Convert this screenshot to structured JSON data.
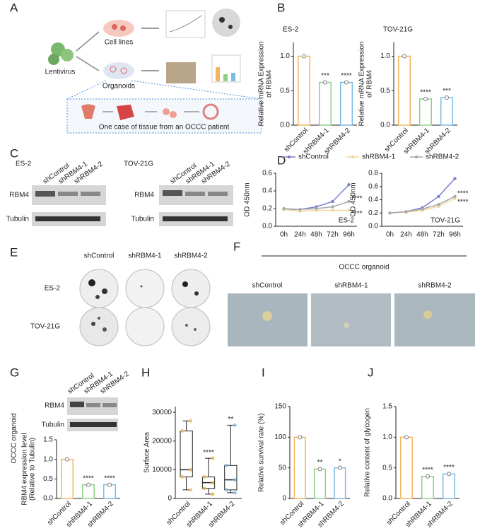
{
  "figure": {
    "panel_labels": [
      "A",
      "B",
      "C",
      "D",
      "E",
      "F",
      "G",
      "H",
      "I",
      "J"
    ],
    "a": {
      "lentivirus": "Lentivirus",
      "cell_lines": "Cell lines",
      "organoids": "Organoids",
      "caption": "One case of tissue from an OCCC patient"
    },
    "c": {
      "cell_lines": [
        "ES-2",
        "TOV-21G"
      ],
      "lanes": [
        "shControl",
        "shRBM4-1",
        "shRBM4-2"
      ],
      "proteins": [
        "RBM4",
        "Tubulin"
      ]
    },
    "e": {
      "columns": [
        "shControl",
        "shRBM4-1",
        "shRBM4-2"
      ],
      "rows": [
        "ES-2",
        "TOV-21G"
      ]
    },
    "f": {
      "title": "OCCC organoid",
      "columns": [
        "shControl",
        "shRBM4-1",
        "shRBM4-2"
      ]
    },
    "g": {
      "side_label": "OCCC organoid",
      "lanes": [
        "shControl",
        "shRBM4-1",
        "shRBM4-2"
      ],
      "proteins": [
        "RBM4",
        "Tubulin"
      ]
    }
  },
  "chart_data": [
    {
      "type": "bar",
      "title": "ES-2",
      "ylabel": [
        "Relative mRNA Expression",
        "of RBM4"
      ],
      "categories": [
        "shControl",
        "shRBM4-1",
        "shRBM4-2"
      ],
      "values": [
        1.0,
        0.62,
        0.62
      ],
      "colors": [
        "#f2b560",
        "#8fcf8a",
        "#7bbbe6"
      ],
      "ylim": [
        0,
        1.2
      ],
      "yticks": [
        {
          "value": 0,
          "label": "0.0"
        },
        {
          "value": 0.5,
          "label": "0.5"
        },
        {
          "value": 1,
          "label": "1.0"
        }
      ],
      "annotations": [
        {
          "category": "shRBM4-1",
          "text": "***"
        },
        {
          "category": "shRBM4-2",
          "text": "****"
        }
      ]
    },
    {
      "type": "bar",
      "title": "TOV-21G",
      "ylabel": [
        "Relative mRNA Expression",
        "of RBM4"
      ],
      "categories": [
        "shControl",
        "shRBM4-1",
        "shRBM4-2"
      ],
      "values": [
        1.0,
        0.38,
        0.4
      ],
      "colors": [
        "#f2b560",
        "#8fcf8a",
        "#7bbbe6"
      ],
      "ylim": [
        0,
        1.2
      ],
      "yticks": [
        {
          "value": 0,
          "label": "0.0"
        },
        {
          "value": 0.5,
          "label": "0.5"
        },
        {
          "value": 1,
          "label": "1.0"
        }
      ],
      "annotations": [
        {
          "category": "shRBM4-1",
          "text": "****"
        },
        {
          "category": "shRBM4-2",
          "text": "***"
        }
      ]
    },
    {
      "type": "line",
      "label": "ES-2",
      "ylabel": [
        "OD 450nm"
      ],
      "categories": [
        "0h",
        "24h",
        "48h",
        "72h",
        "96h"
      ],
      "series": [
        {
          "name": "shControl",
          "color": "#7b7fd0",
          "values": [
            0.19,
            0.19,
            0.22,
            0.28,
            0.47
          ]
        },
        {
          "name": "shRBM4-1",
          "color": "#f0d89a",
          "values": [
            0.19,
            0.17,
            0.18,
            0.18,
            0.18
          ]
        },
        {
          "name": "shRBM4-2",
          "color": "#a9a9a9",
          "values": [
            0.2,
            0.19,
            0.2,
            0.22,
            0.28
          ]
        }
      ],
      "ylim": [
        0,
        0.6
      ],
      "yticks": [
        {
          "value": 0,
          "label": "0.0"
        },
        0.2,
        0.4,
        0.6
      ],
      "annotations": [
        {
          "series": "shRBM4-2",
          "text": "****"
        },
        {
          "series": "shRBM4-1",
          "text": "****"
        }
      ]
    },
    {
      "type": "line",
      "label": "TOV-21G",
      "ylabel": [
        "OD 450nm"
      ],
      "categories": [
        "0h",
        "24h",
        "48h",
        "72h",
        "96h"
      ],
      "series": [
        {
          "color": "#7b7fd0",
          "values": [
            0.2,
            0.22,
            0.28,
            0.45,
            0.72
          ]
        },
        {
          "color": "#f0d89a",
          "values": [
            0.2,
            0.21,
            0.24,
            0.3,
            0.42
          ]
        },
        {
          "color": "#a9a9a9",
          "values": [
            0.2,
            0.22,
            0.26,
            0.33,
            0.45
          ]
        }
      ],
      "ylim": [
        0,
        0.8
      ],
      "yticks": [
        {
          "value": 0,
          "label": "0.0"
        },
        0.2,
        0.4,
        0.6,
        0.8
      ],
      "annotations": [
        {
          "series": 2,
          "text": "****"
        },
        {
          "series": 1,
          "text": "****"
        }
      ]
    },
    {
      "type": "bar",
      "ylabel": [
        "RBM4  expression level",
        "(Relative to Tubulin)"
      ],
      "categories": [
        "shControl",
        "shRBM4-1",
        "shRBM4-2"
      ],
      "values": [
        1.0,
        0.35,
        0.35
      ],
      "colors": [
        "#f2b560",
        "#8fcf8a",
        "#7bbbe6"
      ],
      "ylim": [
        0,
        1.5
      ],
      "yticks": [
        {
          "value": 0,
          "label": "0.0"
        },
        {
          "value": 0.5,
          "label": "0.5"
        },
        {
          "value": 1,
          "label": "1.0"
        },
        {
          "value": 1.5,
          "label": "1.5"
        }
      ],
      "annotations": [
        {
          "category": "shRBM4-1",
          "text": "****"
        },
        {
          "category": "shRBM4-2",
          "text": "****"
        }
      ]
    },
    {
      "type": "box",
      "ylabel": [
        "Surface Area"
      ],
      "categories": [
        "shControl",
        "shRBM4-1",
        "shRBM4-2"
      ],
      "colors": [
        "#f2b560",
        "#e8b04a",
        "#7bbbe6"
      ],
      "boxes": [
        {
          "min": 3000,
          "q1": 7500,
          "median": 10000,
          "q3": 23500,
          "max": 27000
        },
        {
          "min": 1500,
          "q1": 3500,
          "median": 5500,
          "q3": 7500,
          "max": 14000
        },
        {
          "min": 2000,
          "q1": 3000,
          "median": 6500,
          "q3": 11500,
          "max": 25500
        }
      ],
      "ylim": [
        0,
        32000
      ],
      "yticks": [
        0,
        10000,
        20000,
        30000
      ],
      "annotations": [
        {
          "category": "shRBM4-1",
          "text": "****"
        },
        {
          "category": "shRBM4-2",
          "text": "**"
        }
      ]
    },
    {
      "type": "bar",
      "ylabel": [
        "Relative survival rate (%)"
      ],
      "categories": [
        "shControl",
        "shRBM4-1",
        "shRBM4-2"
      ],
      "values": [
        100,
        48,
        50
      ],
      "colors": [
        "#f2b560",
        "#8fcf8a",
        "#7bbbe6"
      ],
      "ylim": [
        0,
        150
      ],
      "yticks": [
        0,
        50,
        100,
        150
      ],
      "annotations": [
        {
          "category": "shRBM4-1",
          "text": "**"
        },
        {
          "category": "shRBM4-2",
          "text": "*"
        }
      ]
    },
    {
      "type": "bar",
      "ylabel": [
        "Relative content of glycogen"
      ],
      "categories": [
        "shControl",
        "shRBM4-1",
        "shRBM4-2"
      ],
      "values": [
        1.0,
        0.36,
        0.4
      ],
      "colors": [
        "#f2b560",
        "#8fcf8a",
        "#7bbbe6"
      ],
      "ylim": [
        0,
        1.5
      ],
      "yticks": [
        {
          "value": 0,
          "label": "0.0"
        },
        {
          "value": 0.5,
          "label": "0.5"
        },
        {
          "value": 1,
          "label": "1.0"
        },
        {
          "value": 1.5,
          "label": "1.5"
        }
      ],
      "annotations": [
        {
          "category": "shRBM4-1",
          "text": "****"
        },
        {
          "category": "shRBM4-2",
          "text": "****"
        }
      ]
    }
  ]
}
